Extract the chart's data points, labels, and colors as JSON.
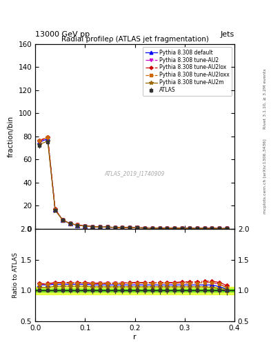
{
  "title": "Radial profileρ (ATLAS jet fragmentation)",
  "top_left_label": "13000 GeV pp",
  "top_right_label": "Jets",
  "right_label_top": "Rivet 3.1.10, ≥ 3.2M events",
  "right_label_bottom": "mcplots.cern.ch [arXiv:1306.3436]",
  "watermark": "ATLAS_2019_I1740909",
  "ylabel_main": "fraction/bin",
  "ylabel_ratio": "Ratio to ATLAS",
  "xlabel": "r",
  "xlim": [
    0.0,
    0.4
  ],
  "ylim_main": [
    0,
    160
  ],
  "ylim_ratio": [
    0.5,
    2.0
  ],
  "r_centers": [
    0.008,
    0.025,
    0.04,
    0.055,
    0.07,
    0.085,
    0.1,
    0.115,
    0.13,
    0.145,
    0.16,
    0.175,
    0.19,
    0.205,
    0.22,
    0.235,
    0.25,
    0.265,
    0.28,
    0.295,
    0.31,
    0.325,
    0.34,
    0.355,
    0.37,
    0.385
  ],
  "data_values": [
    72,
    75,
    16,
    7.5,
    4.5,
    3.2,
    2.4,
    2.0,
    1.7,
    1.5,
    1.3,
    1.15,
    1.0,
    0.9,
    0.82,
    0.75,
    0.68,
    0.62,
    0.57,
    0.52,
    0.48,
    0.44,
    0.4,
    0.36,
    0.32,
    0.28
  ],
  "data_errors": [
    2,
    2,
    0.5,
    0.3,
    0.2,
    0.15,
    0.1,
    0.1,
    0.08,
    0.07,
    0.07,
    0.06,
    0.05,
    0.05,
    0.04,
    0.04,
    0.04,
    0.03,
    0.03,
    0.03,
    0.03,
    0.02,
    0.02,
    0.02,
    0.02,
    0.02
  ],
  "data_color": "#333333",
  "data_marker": "s",
  "data_markersize": 3.5,
  "series": [
    {
      "label": "Pythia 8.308 default",
      "color": "#0000ff",
      "linestyle": "-",
      "marker": "^",
      "markersize": 4,
      "values": [
        75,
        78,
        16.5,
        7.7,
        4.6,
        3.25,
        2.45,
        2.02,
        1.72,
        1.52,
        1.32,
        1.17,
        1.02,
        0.92,
        0.84,
        0.76,
        0.69,
        0.63,
        0.58,
        0.53,
        0.49,
        0.45,
        0.41,
        0.37,
        0.33,
        0.29
      ],
      "ratio": [
        1.09,
        1.09,
        1.1,
        1.1,
        1.1,
        1.1,
        1.1,
        1.09,
        1.09,
        1.09,
        1.09,
        1.09,
        1.09,
        1.09,
        1.09,
        1.09,
        1.09,
        1.09,
        1.09,
        1.09,
        1.09,
        1.09,
        1.09,
        1.09,
        1.06,
        1.02
      ]
    },
    {
      "label": "Pythia 8.308 tune-AU2",
      "color": "#cc00cc",
      "linestyle": "-.",
      "marker": "v",
      "markersize": 3.5,
      "values": [
        76,
        79,
        16.8,
        7.8,
        4.65,
        3.28,
        2.47,
        2.03,
        1.73,
        1.53,
        1.33,
        1.18,
        1.03,
        0.93,
        0.85,
        0.77,
        0.7,
        0.64,
        0.59,
        0.54,
        0.5,
        0.46,
        0.42,
        0.38,
        0.34,
        0.29
      ],
      "ratio": [
        1.1,
        1.1,
        1.12,
        1.12,
        1.12,
        1.12,
        1.12,
        1.11,
        1.11,
        1.11,
        1.11,
        1.12,
        1.12,
        1.12,
        1.12,
        1.12,
        1.12,
        1.12,
        1.12,
        1.12,
        1.12,
        1.12,
        1.13,
        1.13,
        1.1,
        1.05
      ]
    },
    {
      "label": "Pythia 8.308 tune-AU2lox",
      "color": "#cc0000",
      "linestyle": "-.",
      "marker": "D",
      "markersize": 3,
      "values": [
        76.5,
        79.5,
        17.0,
        7.9,
        4.7,
        3.3,
        2.48,
        2.04,
        1.74,
        1.54,
        1.34,
        1.19,
        1.04,
        0.94,
        0.86,
        0.78,
        0.71,
        0.65,
        0.6,
        0.55,
        0.51,
        0.47,
        0.43,
        0.39,
        0.35,
        0.3
      ],
      "ratio": [
        1.11,
        1.11,
        1.13,
        1.13,
        1.13,
        1.13,
        1.13,
        1.12,
        1.12,
        1.12,
        1.12,
        1.12,
        1.13,
        1.13,
        1.13,
        1.13,
        1.13,
        1.13,
        1.13,
        1.14,
        1.14,
        1.14,
        1.15,
        1.15,
        1.13,
        1.08
      ]
    },
    {
      "label": "Pythia 8.308 tune-AU2loxx",
      "color": "#cc6600",
      "linestyle": "--",
      "marker": "s",
      "markersize": 3,
      "values": [
        76.2,
        79.2,
        16.9,
        7.85,
        4.68,
        3.29,
        2.47,
        2.03,
        1.73,
        1.53,
        1.33,
        1.18,
        1.03,
        0.93,
        0.85,
        0.77,
        0.7,
        0.64,
        0.59,
        0.54,
        0.5,
        0.46,
        0.42,
        0.38,
        0.34,
        0.29
      ],
      "ratio": [
        1.1,
        1.1,
        1.12,
        1.12,
        1.12,
        1.12,
        1.12,
        1.11,
        1.11,
        1.11,
        1.11,
        1.12,
        1.12,
        1.12,
        1.12,
        1.12,
        1.12,
        1.12,
        1.12,
        1.12,
        1.12,
        1.12,
        1.13,
        1.13,
        1.1,
        1.05
      ]
    },
    {
      "label": "Pythia 8.308 tune-AU2m",
      "color": "#996600",
      "linestyle": "-",
      "marker": "*",
      "markersize": 4.5,
      "values": [
        73,
        76,
        16.2,
        7.6,
        4.55,
        3.22,
        2.42,
        2.0,
        1.7,
        1.5,
        1.3,
        1.15,
        1.0,
        0.9,
        0.82,
        0.74,
        0.67,
        0.61,
        0.56,
        0.51,
        0.47,
        0.43,
        0.39,
        0.35,
        0.31,
        0.27
      ],
      "ratio": [
        1.05,
        1.05,
        1.07,
        1.07,
        1.07,
        1.07,
        1.07,
        1.06,
        1.06,
        1.06,
        1.06,
        1.06,
        1.06,
        1.06,
        1.06,
        1.06,
        1.06,
        1.06,
        1.06,
        1.06,
        1.06,
        1.06,
        1.06,
        1.05,
        1.03,
        1.0
      ]
    }
  ],
  "stat_band_color": "#00bb00",
  "stat_band_alpha": 0.5,
  "sys_band_color": "#ddff00",
  "sys_band_alpha": 0.7,
  "stat_band_ratio": 0.025,
  "sys_band_ratio": 0.06,
  "yticks_main": [
    0,
    20,
    40,
    60,
    80,
    100,
    120,
    140,
    160
  ],
  "yticks_ratio": [
    0.5,
    1.0,
    1.5,
    2.0
  ],
  "xticks": [
    0.0,
    0.1,
    0.2,
    0.3,
    0.4
  ]
}
